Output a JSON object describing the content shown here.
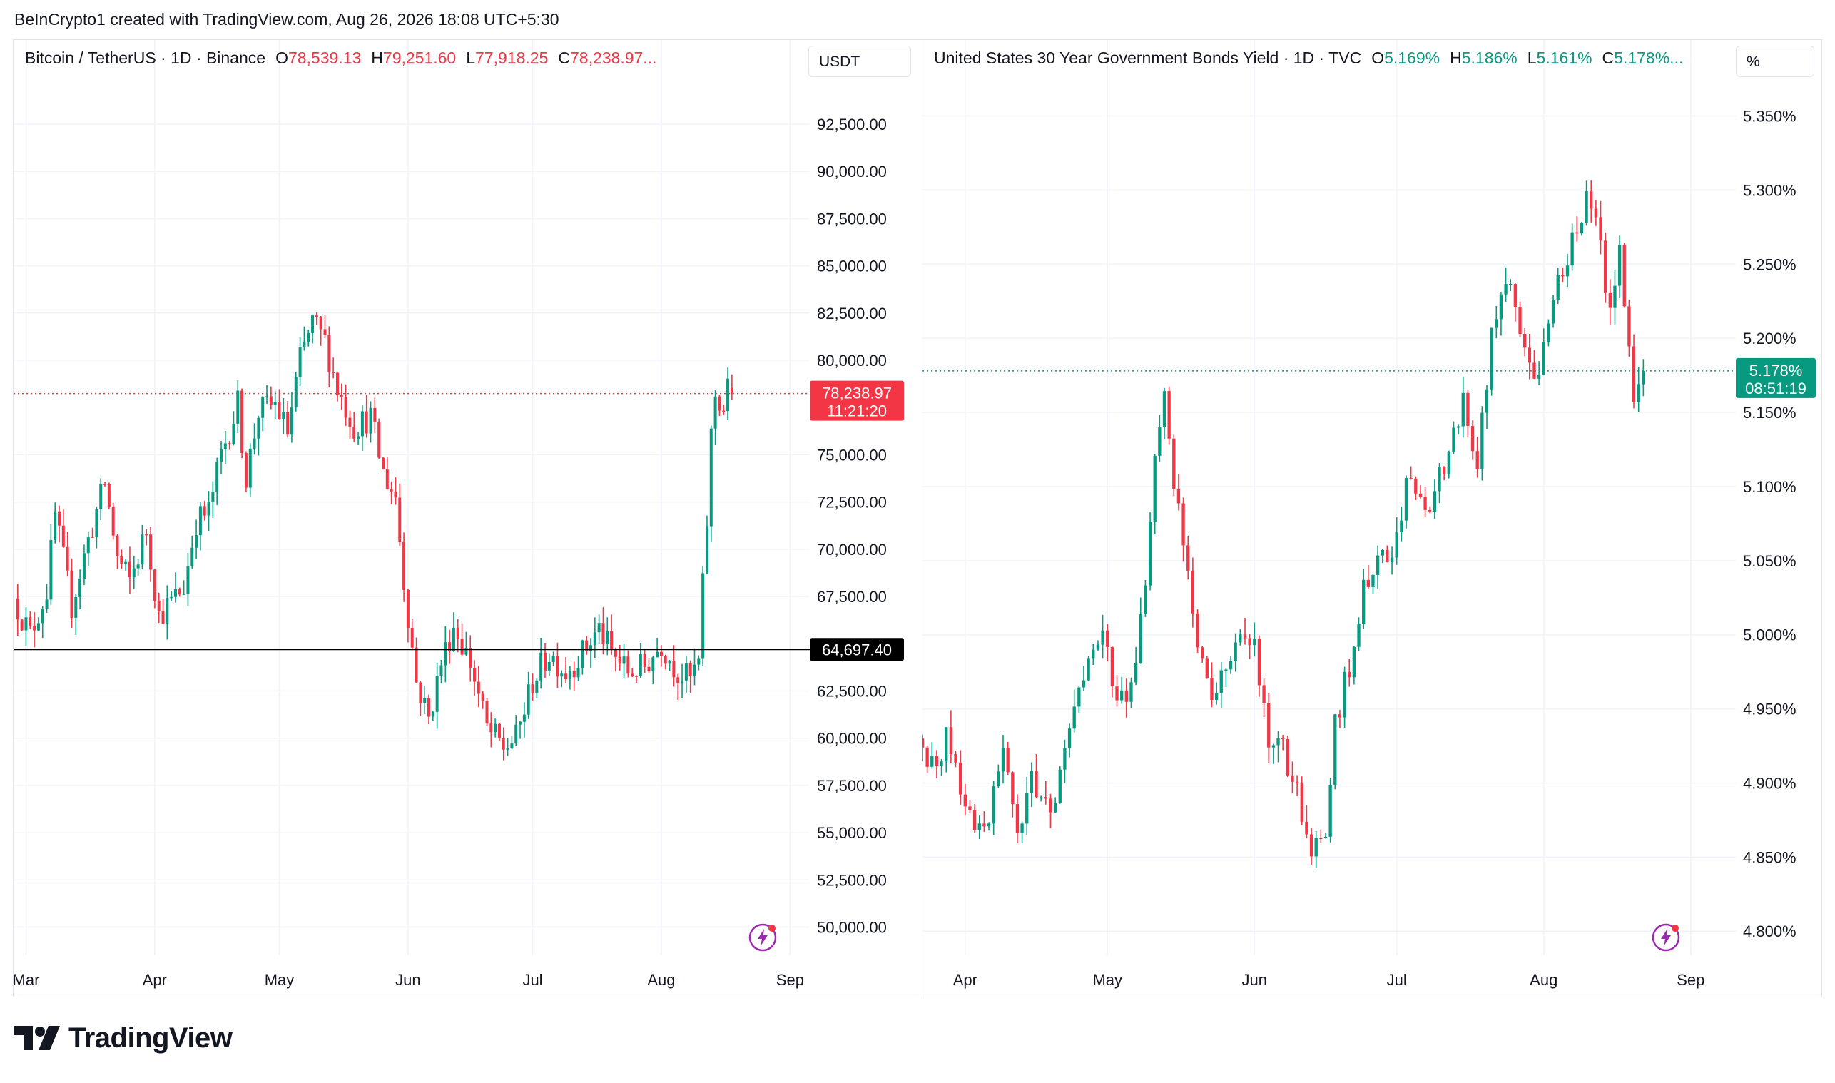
{
  "header": {
    "caption": "BeInCrypto1 created with TradingView.com, Aug 26, 2026 18:08 UTC+5:30"
  },
  "brand": {
    "name": "TradingView",
    "icon": "tradingview-logo-icon"
  },
  "colors": {
    "up": "#089981",
    "down": "#f23645",
    "grid": "#f0f3fa",
    "text": "#131722"
  },
  "chart_data": [
    {
      "type": "candlestick",
      "title": "Bitcoin / TetherUS · 1D · Binance",
      "ohlc": {
        "o_label": "O",
        "o": "78,539.13",
        "h_label": "H",
        "h": "79,251.60",
        "l_label": "L",
        "l": "77,918.25",
        "c_label": "C",
        "c": "78,238.97..."
      },
      "unit": "USDT",
      "y_ticks": [
        "92,500.00",
        "90,000.00",
        "87,500.00",
        "85,000.00",
        "82,500.00",
        "80,000.00",
        "75,000.00",
        "72,500.00",
        "70,000.00",
        "67,500.00",
        "62,500.00",
        "60,000.00",
        "57,500.00",
        "55,000.00",
        "52,500.00",
        "50,000.00"
      ],
      "y_tick_values": [
        92500,
        90000,
        87500,
        85000,
        82500,
        80000,
        75000,
        72500,
        70000,
        67500,
        62500,
        60000,
        57500,
        55000,
        52500,
        50000
      ],
      "ylim": [
        49000,
        94500
      ],
      "x_ticks": [
        "Mar",
        "Apr",
        "May",
        "Jun",
        "Jul",
        "Aug",
        "Sep"
      ],
      "x_tick_days": [
        0,
        31,
        61,
        92,
        122,
        153,
        184
      ],
      "x_range_days": [
        -3,
        186
      ],
      "last_price": {
        "value": 78238.97,
        "label": "78,238.97",
        "countdown": "11:21:20"
      },
      "hline": {
        "value": 64697.4,
        "label": "64,697.40"
      },
      "anchors": [
        {
          "d": -2,
          "v": 67400
        },
        {
          "d": 2,
          "v": 65500
        },
        {
          "d": 6,
          "v": 67800
        },
        {
          "d": 8,
          "v": 71800
        },
        {
          "d": 12,
          "v": 67000
        },
        {
          "d": 16,
          "v": 70500
        },
        {
          "d": 20,
          "v": 73500
        },
        {
          "d": 23,
          "v": 69500
        },
        {
          "d": 26,
          "v": 68300
        },
        {
          "d": 30,
          "v": 71000
        },
        {
          "d": 33,
          "v": 66500
        },
        {
          "d": 36,
          "v": 67200
        },
        {
          "d": 39,
          "v": 68000
        },
        {
          "d": 42,
          "v": 71500
        },
        {
          "d": 45,
          "v": 72000
        },
        {
          "d": 48,
          "v": 75000
        },
        {
          "d": 52,
          "v": 77700
        },
        {
          "d": 54,
          "v": 73800
        },
        {
          "d": 57,
          "v": 77300
        },
        {
          "d": 61,
          "v": 77700
        },
        {
          "d": 64,
          "v": 76200
        },
        {
          "d": 67,
          "v": 80000
        },
        {
          "d": 70,
          "v": 82000
        },
        {
          "d": 73,
          "v": 81000
        },
        {
          "d": 76,
          "v": 78500
        },
        {
          "d": 80,
          "v": 76500
        },
        {
          "d": 84,
          "v": 77000
        },
        {
          "d": 87,
          "v": 74000
        },
        {
          "d": 90,
          "v": 72800
        },
        {
          "d": 92,
          "v": 68300
        },
        {
          "d": 95,
          "v": 63000
        },
        {
          "d": 98,
          "v": 61000
        },
        {
          "d": 101,
          "v": 64000
        },
        {
          "d": 104,
          "v": 66000
        },
        {
          "d": 108,
          "v": 64000
        },
        {
          "d": 112,
          "v": 60500
        },
        {
          "d": 116,
          "v": 59500
        },
        {
          "d": 119,
          "v": 60000
        },
        {
          "d": 123,
          "v": 63000
        },
        {
          "d": 127,
          "v": 64500
        },
        {
          "d": 131,
          "v": 63500
        },
        {
          "d": 135,
          "v": 64500
        },
        {
          "d": 139,
          "v": 65800
        },
        {
          "d": 142,
          "v": 64500
        },
        {
          "d": 146,
          "v": 63500
        },
        {
          "d": 150,
          "v": 63800
        },
        {
          "d": 154,
          "v": 65000
        },
        {
          "d": 158,
          "v": 63500
        },
        {
          "d": 161,
          "v": 63100
        },
        {
          "d": 163,
          "v": 64000
        },
        {
          "d": 164,
          "v": 68000
        },
        {
          "d": 165,
          "v": 71500
        },
        {
          "d": 166,
          "v": 76000
        },
        {
          "d": 167,
          "v": 78200
        },
        {
          "d": 169,
          "v": 77400
        },
        {
          "d": 170,
          "v": 78540
        }
      ],
      "last_candle": {
        "d": 170,
        "o": 78539.13,
        "h": 79251.6,
        "l": 77918.25,
        "c": 78238.97
      }
    },
    {
      "type": "candlestick",
      "title": "United States 30 Year Government Bonds Yield · 1D · TVC",
      "ohlc": {
        "o_label": "O",
        "o": "5.169%",
        "h_label": "H",
        "h": "5.186%",
        "l_label": "L",
        "l": "5.161%",
        "c_label": "C",
        "c": "5.178%..."
      },
      "unit": "%",
      "y_ticks": [
        "5.350%",
        "5.300%",
        "5.250%",
        "5.200%",
        "5.150%",
        "5.100%",
        "5.050%",
        "5.000%",
        "4.950%",
        "4.900%",
        "4.850%",
        "4.800%"
      ],
      "y_tick_values": [
        5.35,
        5.3,
        5.25,
        5.2,
        5.15,
        5.1,
        5.05,
        5.0,
        4.95,
        4.9,
        4.85,
        4.8
      ],
      "ylim": [
        4.79,
        5.37
      ],
      "x_ticks": [
        "Apr",
        "May",
        "Jun",
        "Jul",
        "Aug",
        "Sep"
      ],
      "x_tick_days": [
        31,
        61,
        92,
        122,
        153,
        184
      ],
      "x_range_days": [
        22,
        192
      ],
      "last_price": {
        "value": 5.178,
        "label": "5.178%",
        "countdown": "08:51:19"
      },
      "anchors": [
        {
          "d": 22,
          "v": 4.93
        },
        {
          "d": 25,
          "v": 4.91
        },
        {
          "d": 28,
          "v": 4.93
        },
        {
          "d": 31,
          "v": 4.9
        },
        {
          "d": 34,
          "v": 4.87
        },
        {
          "d": 37,
          "v": 4.88
        },
        {
          "d": 40,
          "v": 4.92
        },
        {
          "d": 43,
          "v": 4.86
        },
        {
          "d": 46,
          "v": 4.9
        },
        {
          "d": 49,
          "v": 4.88
        },
        {
          "d": 52,
          "v": 4.9
        },
        {
          "d": 55,
          "v": 4.95
        },
        {
          "d": 58,
          "v": 4.99
        },
        {
          "d": 61,
          "v": 5.0
        },
        {
          "d": 64,
          "v": 4.95
        },
        {
          "d": 67,
          "v": 4.97
        },
        {
          "d": 70,
          "v": 5.03
        },
        {
          "d": 72,
          "v": 5.12
        },
        {
          "d": 74,
          "v": 5.16
        },
        {
          "d": 76,
          "v": 5.1
        },
        {
          "d": 78,
          "v": 5.06
        },
        {
          "d": 81,
          "v": 4.99
        },
        {
          "d": 84,
          "v": 4.96
        },
        {
          "d": 87,
          "v": 4.98
        },
        {
          "d": 90,
          "v": 5.0
        },
        {
          "d": 93,
          "v": 4.99
        },
        {
          "d": 96,
          "v": 4.93
        },
        {
          "d": 99,
          "v": 4.92
        },
        {
          "d": 102,
          "v": 4.89
        },
        {
          "d": 105,
          "v": 4.86
        },
        {
          "d": 108,
          "v": 4.86
        },
        {
          "d": 110,
          "v": 4.94
        },
        {
          "d": 113,
          "v": 4.98
        },
        {
          "d": 116,
          "v": 5.03
        },
        {
          "d": 119,
          "v": 5.06
        },
        {
          "d": 122,
          "v": 5.05
        },
        {
          "d": 125,
          "v": 5.1
        },
        {
          "d": 128,
          "v": 5.09
        },
        {
          "d": 131,
          "v": 5.09
        },
        {
          "d": 134,
          "v": 5.13
        },
        {
          "d": 137,
          "v": 5.16
        },
        {
          "d": 140,
          "v": 5.12
        },
        {
          "d": 143,
          "v": 5.2
        },
        {
          "d": 146,
          "v": 5.24
        },
        {
          "d": 149,
          "v": 5.21
        },
        {
          "d": 152,
          "v": 5.17
        },
        {
          "d": 155,
          "v": 5.21
        },
        {
          "d": 158,
          "v": 5.25
        },
        {
          "d": 161,
          "v": 5.27
        },
        {
          "d": 163,
          "v": 5.3
        },
        {
          "d": 166,
          "v": 5.26
        },
        {
          "d": 168,
          "v": 5.22
        },
        {
          "d": 170,
          "v": 5.26
        },
        {
          "d": 172,
          "v": 5.2
        },
        {
          "d": 173,
          "v": 5.16
        }
      ],
      "last_candle": {
        "d": 174,
        "o": 5.169,
        "h": 5.186,
        "l": 5.161,
        "c": 5.178
      }
    }
  ]
}
